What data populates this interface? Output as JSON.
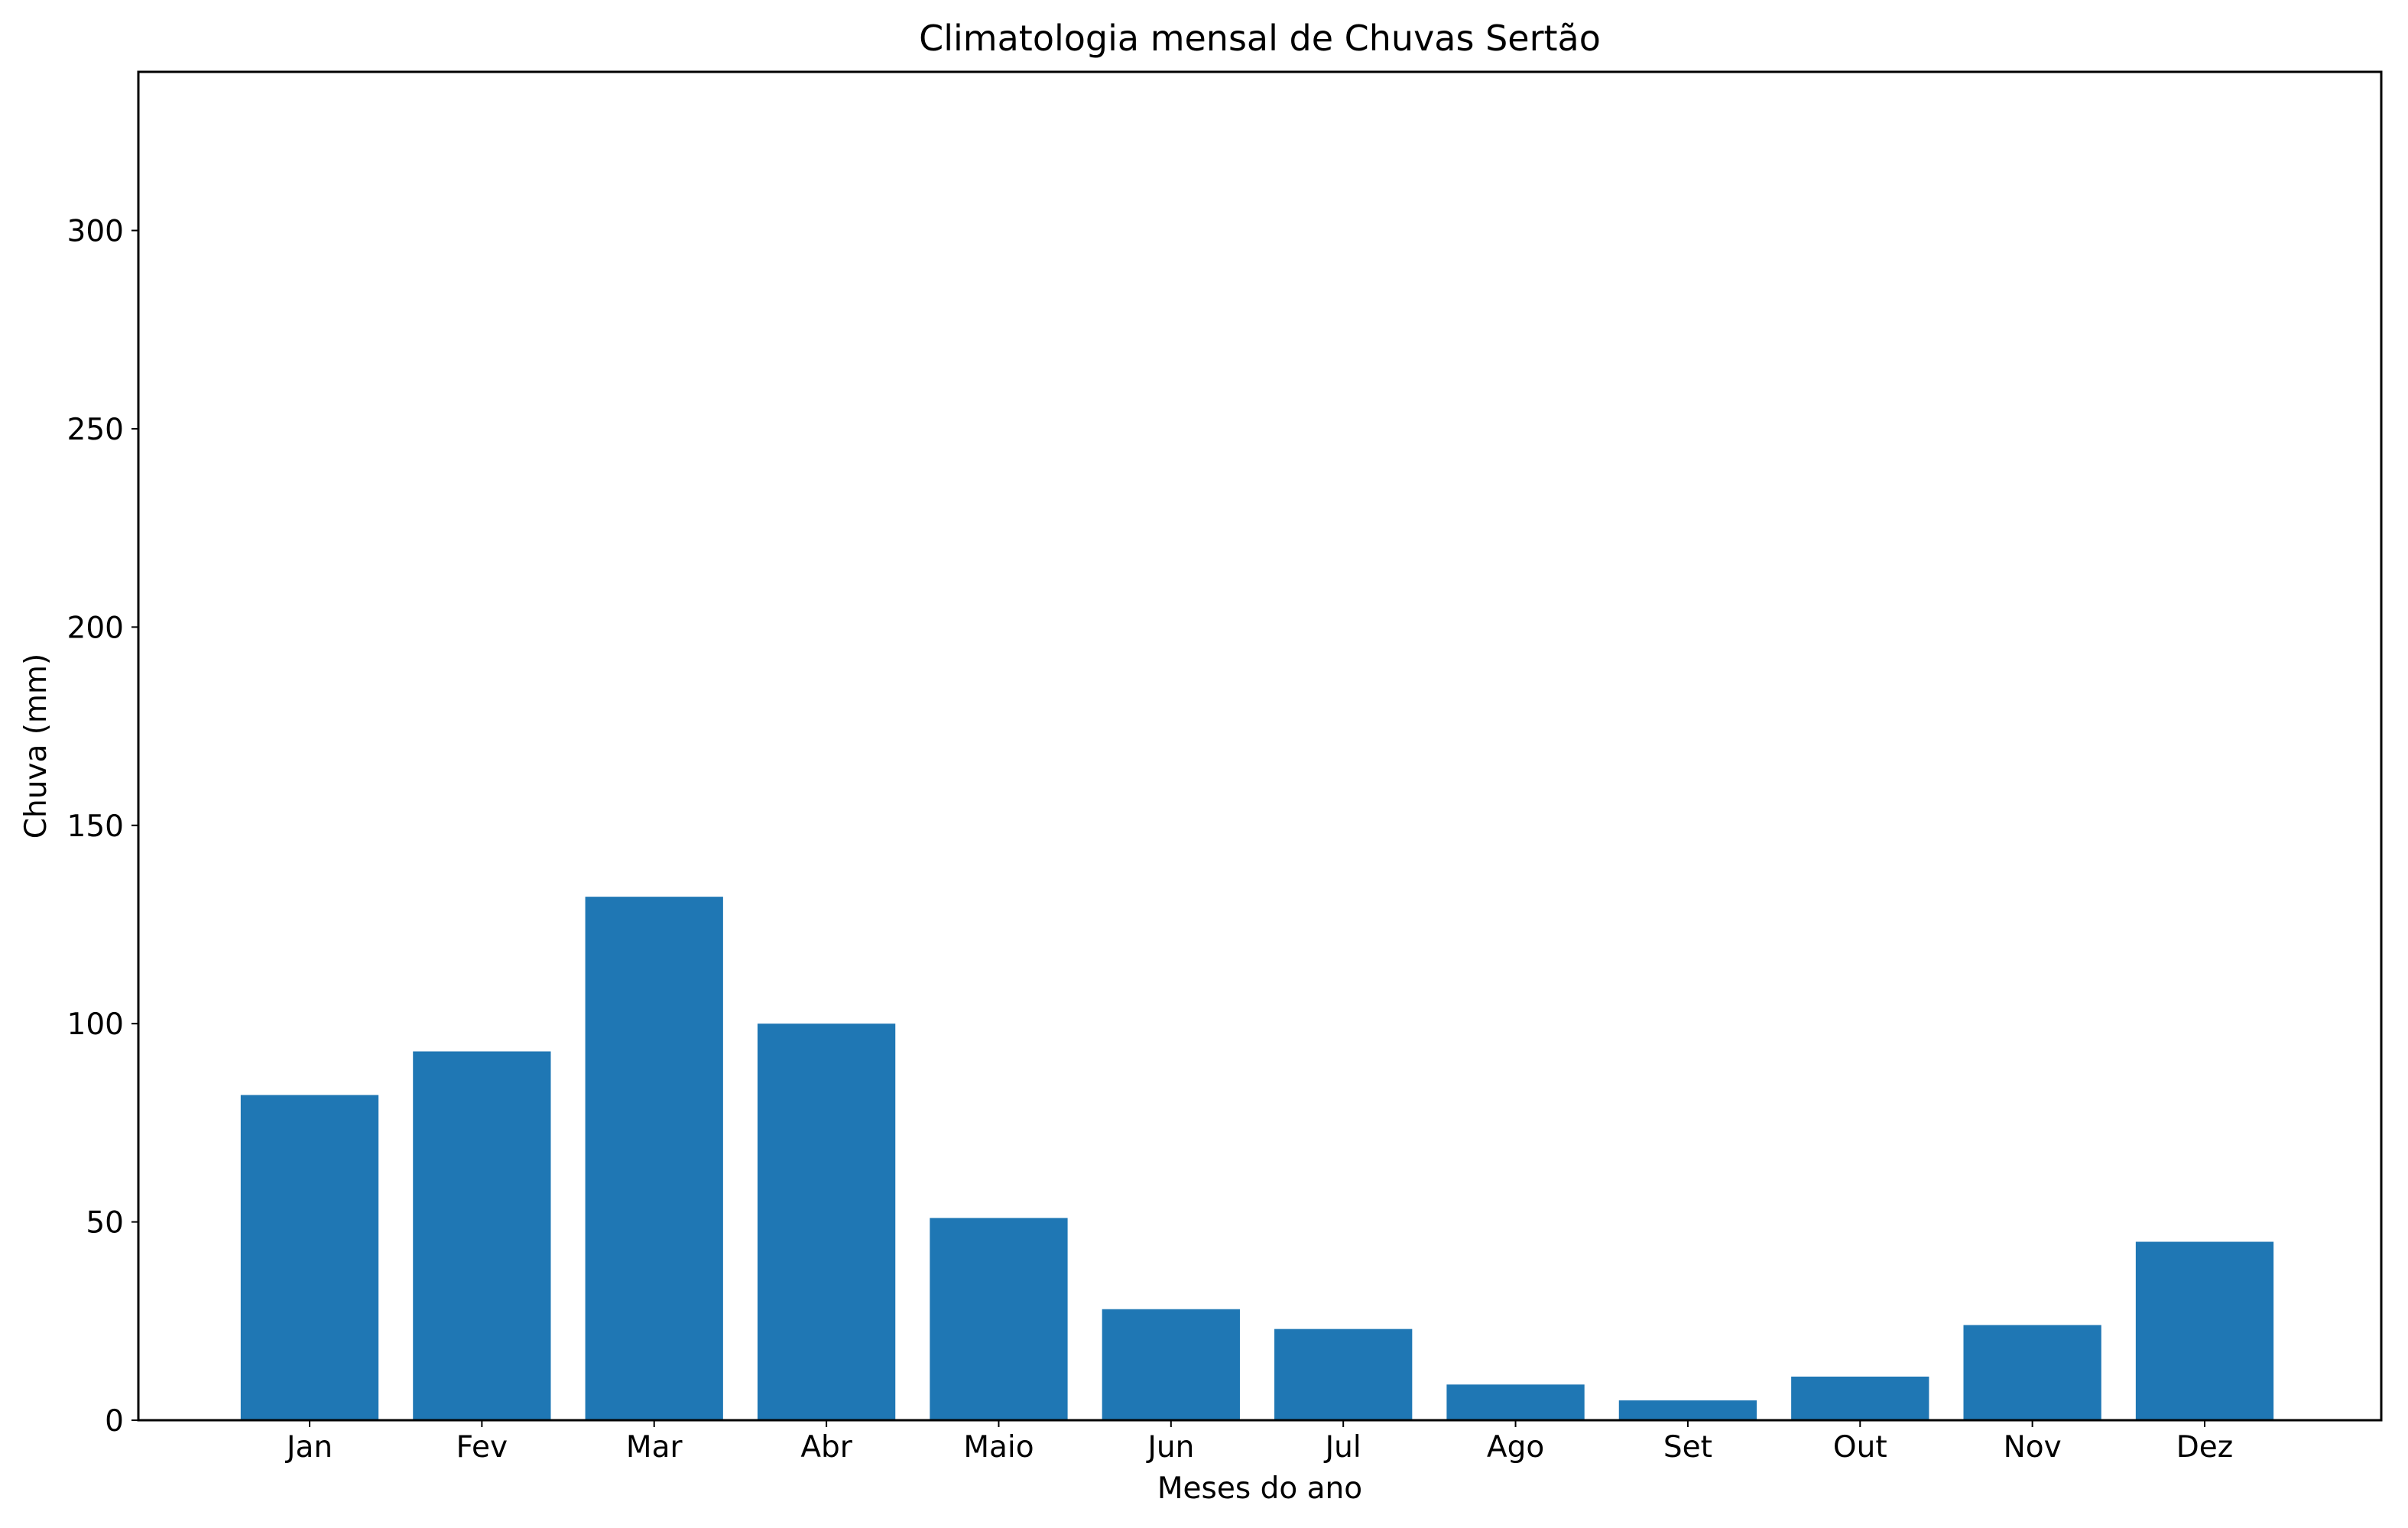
{
  "chart_data": {
    "type": "bar",
    "title": "Climatologia mensal de Chuvas Sertão",
    "xlabel": "Meses do ano",
    "ylabel": "Chuva (mm)",
    "categories": [
      "Jan",
      "Fev",
      "Mar",
      "Abr",
      "Maio",
      "Jun",
      "Jul",
      "Ago",
      "Set",
      "Out",
      "Nov",
      "Dez"
    ],
    "values": [
      82,
      93,
      132,
      100,
      51,
      28,
      23,
      9,
      5,
      11,
      24,
      45
    ],
    "ylim": [
      0,
      340
    ],
    "yticks": [
      0,
      50,
      100,
      150,
      200,
      250,
      300
    ],
    "grid": false,
    "legend": "none",
    "bar_color": "#1f77b4"
  }
}
